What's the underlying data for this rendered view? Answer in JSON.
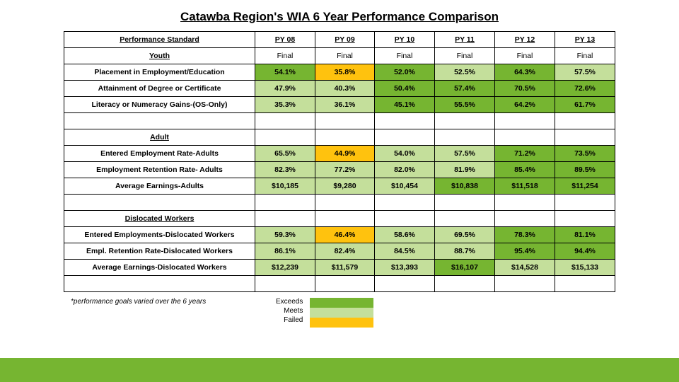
{
  "title": "Catawba Region's WIA 6 Year Performance Comparison",
  "footnote": "*performance goals varied over the 6 years",
  "legend": {
    "exceeds": "Exceeds",
    "meets": "Meets",
    "failed": "Failed"
  },
  "colors": {
    "green": "#76b531",
    "lime": "#c4df9b",
    "yellow": "#ffc20e"
  },
  "header": {
    "label": "Performance Standard",
    "cols": [
      "PY 08",
      "PY 09",
      "PY 10",
      "PY 11",
      "PY 12",
      "PY 13"
    ]
  },
  "youth": {
    "label": "Youth",
    "status": [
      "Final",
      "Final",
      "Final",
      "Final",
      "Final",
      "Final"
    ],
    "rows": [
      {
        "label": "Placement in Employment/Education",
        "cells": [
          {
            "v": "54.1%",
            "c": "green"
          },
          {
            "v": "35.8%",
            "c": "yellow"
          },
          {
            "v": "52.0%",
            "c": "green"
          },
          {
            "v": "52.5%",
            "c": "lime"
          },
          {
            "v": "64.3%",
            "c": "green"
          },
          {
            "v": "57.5%",
            "c": "lime"
          }
        ]
      },
      {
        "label": "Attainment of Degree or Certificate",
        "cells": [
          {
            "v": "47.9%",
            "c": "lime"
          },
          {
            "v": "40.3%",
            "c": "lime"
          },
          {
            "v": "50.4%",
            "c": "green"
          },
          {
            "v": "57.4%",
            "c": "green"
          },
          {
            "v": "70.5%",
            "c": "green"
          },
          {
            "v": "72.6%",
            "c": "green"
          }
        ]
      },
      {
        "label": "Literacy or Numeracy Gains-(OS-Only)",
        "cells": [
          {
            "v": "35.3%",
            "c": "lime"
          },
          {
            "v": "36.1%",
            "c": "lime"
          },
          {
            "v": "45.1%",
            "c": "green"
          },
          {
            "v": "55.5%",
            "c": "green"
          },
          {
            "v": "64.2%",
            "c": "green"
          },
          {
            "v": "61.7%",
            "c": "green"
          }
        ]
      }
    ]
  },
  "adult": {
    "label": "Adult",
    "rows": [
      {
        "label": "Entered Employment Rate-Adults",
        "cells": [
          {
            "v": "65.5%",
            "c": "lime"
          },
          {
            "v": "44.9%",
            "c": "yellow"
          },
          {
            "v": "54.0%",
            "c": "lime"
          },
          {
            "v": "57.5%",
            "c": "lime"
          },
          {
            "v": "71.2%",
            "c": "green"
          },
          {
            "v": "73.5%",
            "c": "green"
          }
        ]
      },
      {
        "label": "Employment Retention Rate- Adults",
        "cells": [
          {
            "v": "82.3%",
            "c": "lime"
          },
          {
            "v": "77.2%",
            "c": "lime"
          },
          {
            "v": "82.0%",
            "c": "lime"
          },
          {
            "v": "81.9%",
            "c": "lime"
          },
          {
            "v": "85.4%",
            "c": "green"
          },
          {
            "v": "89.5%",
            "c": "green"
          }
        ]
      },
      {
        "label": "Average Earnings-Adults",
        "cells": [
          {
            "v": "$10,185",
            "c": "lime"
          },
          {
            "v": "$9,280",
            "c": "lime"
          },
          {
            "v": "$10,454",
            "c": "lime"
          },
          {
            "v": "$10,838",
            "c": "green"
          },
          {
            "v": "$11,518",
            "c": "green"
          },
          {
            "v": "$11,254",
            "c": "green"
          }
        ]
      }
    ]
  },
  "dislocated": {
    "label": "Dislocated Workers",
    "rows": [
      {
        "label": "Entered Employments-Dislocated Workers",
        "cells": [
          {
            "v": "59.3%",
            "c": "lime"
          },
          {
            "v": "46.4%",
            "c": "yellow"
          },
          {
            "v": "58.6%",
            "c": "lime"
          },
          {
            "v": "69.5%",
            "c": "lime"
          },
          {
            "v": "78.3%",
            "c": "green"
          },
          {
            "v": "81.1%",
            "c": "green"
          }
        ]
      },
      {
        "label": "Empl. Retention Rate-Dislocated Workers",
        "cells": [
          {
            "v": "86.1%",
            "c": "lime"
          },
          {
            "v": "82.4%",
            "c": "lime"
          },
          {
            "v": "84.5%",
            "c": "lime"
          },
          {
            "v": "88.7%",
            "c": "lime"
          },
          {
            "v": "95.4%",
            "c": "green"
          },
          {
            "v": "94.4%",
            "c": "green"
          }
        ]
      },
      {
        "label": "Average Earnings-Dislocated Workers",
        "cells": [
          {
            "v": "$12,239",
            "c": "lime"
          },
          {
            "v": "$11,579",
            "c": "lime"
          },
          {
            "v": "$13,393",
            "c": "lime"
          },
          {
            "v": "$16,107",
            "c": "green"
          },
          {
            "v": "$14,528",
            "c": "lime"
          },
          {
            "v": "$15,133",
            "c": "lime"
          }
        ]
      }
    ]
  }
}
